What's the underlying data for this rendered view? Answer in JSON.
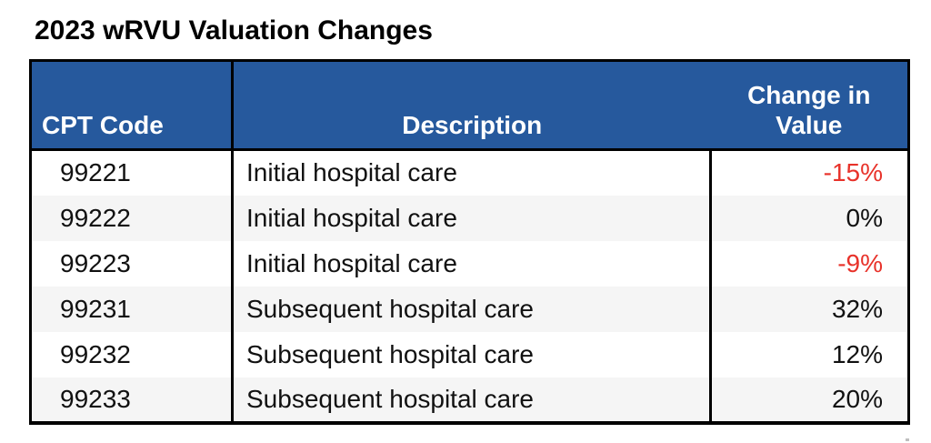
{
  "title": "2023 wRVU Valuation Changes",
  "colors": {
    "header_bg": "#26599D",
    "header_text": "#FFFFFF",
    "negative": "#E8322A",
    "stripe": "#F5F5F5",
    "border": "#000000",
    "text": "#111111"
  },
  "table": {
    "headers": [
      "CPT Code",
      "Description",
      "Change in Value"
    ],
    "rows": [
      {
        "cpt": "99221",
        "description": "Initial hospital care",
        "change": "-15%"
      },
      {
        "cpt": "99222",
        "description": "Initial hospital care",
        "change": "0%"
      },
      {
        "cpt": "99223",
        "description": "Initial hospital care",
        "change": "-9%"
      },
      {
        "cpt": "99231",
        "description": "Subsequent hospital care",
        "change": "32%"
      },
      {
        "cpt": "99232",
        "description": "Subsequent hospital care",
        "change": "12%"
      },
      {
        "cpt": "99233",
        "description": "Subsequent hospital care",
        "change": "20%"
      }
    ]
  }
}
